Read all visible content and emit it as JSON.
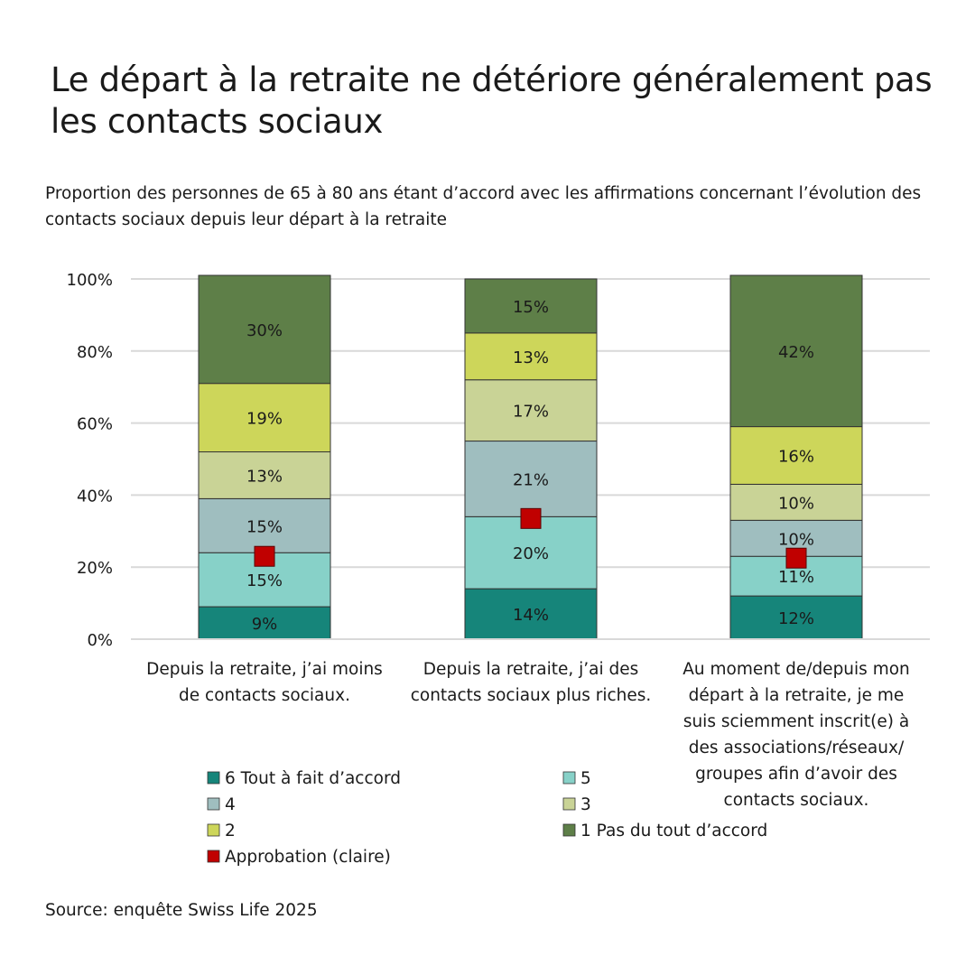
{
  "title": "Le départ à la retraite ne détériore généralement pas les contacts sociaux",
  "subtitle": "Proportion des personnes de 65 à 80 ans étant d’accord avec les affirmations concernant l’évolution des contacts sociaux depuis leur départ à la retraite",
  "source": "Source: enquête Swiss Life 2025",
  "chart_data": {
    "type": "bar",
    "stacked": true,
    "title": "",
    "xlabel": "",
    "ylabel": "",
    "ylim": [
      0,
      100
    ],
    "yticks": [
      "0%",
      "20%",
      "40%",
      "60%",
      "80%",
      "100%"
    ],
    "grid": true,
    "legend_position": "bottom-left",
    "categories": [
      [
        "Depuis la retraite, j’ai moins",
        "de contacts sociaux."
      ],
      [
        "Depuis la retraite, j’ai des",
        "contacts sociaux plus riches."
      ],
      [
        "Au moment de/depuis mon",
        "départ à la retraite, je me",
        "suis sciemment inscrit(e) à",
        "des associations/réseaux/",
        "groupes afin d’avoir des",
        "contacts sociaux."
      ]
    ],
    "series": [
      {
        "name": "6 Tout à fait d’accord",
        "color": "#16857a",
        "values": [
          9,
          14,
          12
        ],
        "labels": [
          "9%",
          "14%",
          "12%"
        ]
      },
      {
        "name": "5",
        "color": "#87d1c8",
        "values": [
          15,
          20,
          11
        ],
        "labels": [
          "15%",
          "20%",
          "11%"
        ]
      },
      {
        "name": "4",
        "color": "#9fbebf",
        "values": [
          15,
          21,
          10
        ],
        "labels": [
          "15%",
          "21%",
          "10%"
        ]
      },
      {
        "name": "3",
        "color": "#c9d396",
        "values": [
          13,
          17,
          10
        ],
        "labels": [
          "13%",
          "17%",
          "10%"
        ]
      },
      {
        "name": "2",
        "color": "#cdd65a",
        "values": [
          19,
          13,
          16
        ],
        "labels": [
          "19%",
          "13%",
          "16%"
        ]
      },
      {
        "name": "1 Pas du tout d’accord",
        "color": "#5e7f48",
        "values": [
          30,
          15,
          42
        ],
        "labels": [
          "30%",
          "15%",
          "42%"
        ]
      }
    ],
    "markers": {
      "name": "Approbation (claire)",
      "color": "#c00000",
      "values": [
        23,
        33.5,
        22.5
      ]
    }
  }
}
